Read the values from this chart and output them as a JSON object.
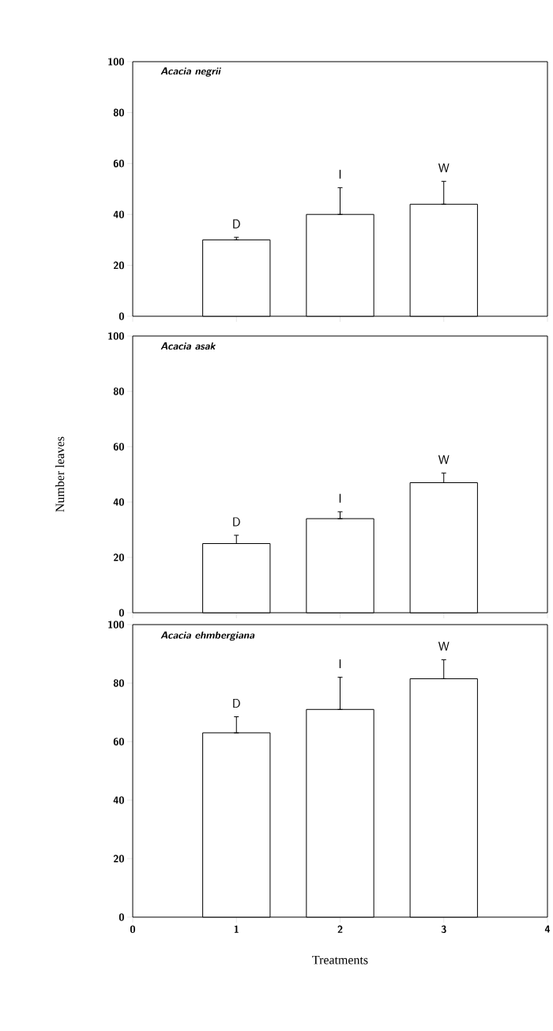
{
  "chart_data": [
    {
      "type": "bar",
      "title": "Acacia negrii",
      "x": [
        1,
        2,
        3
      ],
      "values": [
        30,
        40,
        44
      ],
      "errors": [
        [
          30,
          31
        ],
        [
          40,
          50.5
        ],
        [
          44,
          53
        ]
      ],
      "color": "#ffffff",
      "xlim": [
        0,
        4
      ],
      "xticks": [
        0,
        1,
        2,
        3,
        4
      ],
      "ylim": [
        0,
        100
      ],
      "yticks": [
        0,
        20,
        40,
        60,
        80,
        100
      ],
      "tick_labels": "y",
      "annotations": [
        "D",
        "I",
        "W"
      ]
    },
    {
      "type": "bar",
      "title": "Acacia asak",
      "ylabel": "Number leaves",
      "x": [
        1,
        2,
        3
      ],
      "values": [
        25,
        34,
        47
      ],
      "errors": [
        [
          25,
          28
        ],
        [
          34,
          36.5
        ],
        [
          47,
          50.5
        ]
      ],
      "color": "#ffffff",
      "xlim": [
        0,
        4
      ],
      "xticks": [
        0,
        1,
        2,
        3,
        4
      ],
      "ylim": [
        0,
        100
      ],
      "yticks": [
        0,
        20,
        40,
        60,
        80,
        100
      ],
      "tick_labels": "y",
      "annotations": [
        "D",
        "I",
        "W"
      ]
    },
    {
      "type": "bar",
      "title": "Acacia ehmbergiana",
      "xlabel": "Treatments",
      "x": [
        1,
        2,
        3
      ],
      "values": [
        63,
        71,
        81.5
      ],
      "errors": [
        [
          63,
          68.5
        ],
        [
          71,
          82
        ],
        [
          81.5,
          88
        ]
      ],
      "color": "#ffffff",
      "xlim": [
        0,
        4
      ],
      "xticks": [
        0,
        1,
        2,
        3,
        4
      ],
      "ylim": [
        0,
        100
      ],
      "yticks": [
        0,
        20,
        40,
        60,
        80,
        100
      ],
      "annotations": [
        "D",
        "I",
        "W"
      ]
    }
  ]
}
